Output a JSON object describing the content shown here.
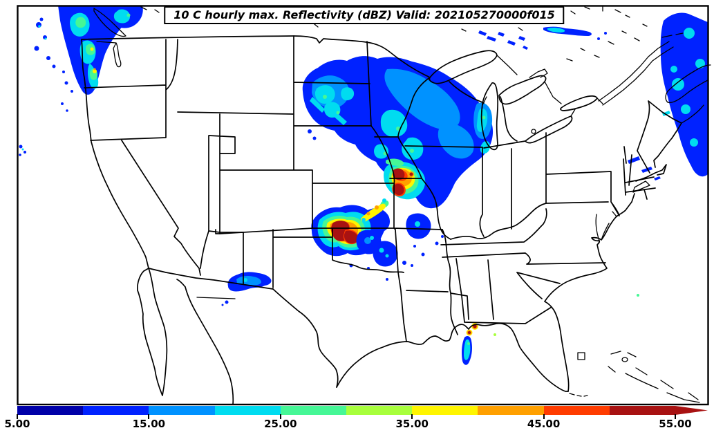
{
  "title": {
    "text": "10 C hourly max. Reflectivity (dBZ) Valid: 202105270000f015"
  },
  "colorbar": {
    "min": 5,
    "max": 55,
    "tick_labels": [
      "5.00",
      "15.00",
      "25.00",
      "35.00",
      "45.00",
      "55.00"
    ],
    "tick_values": [
      5,
      15,
      25,
      35,
      45,
      55
    ],
    "segments": [
      {
        "from": 5,
        "to": 10,
        "color": "#0000A8"
      },
      {
        "from": 10,
        "to": 15,
        "color": "#0022FF"
      },
      {
        "from": 15,
        "to": 20,
        "color": "#0092FF"
      },
      {
        "from": 20,
        "to": 25,
        "color": "#00DCF0"
      },
      {
        "from": 25,
        "to": 30,
        "color": "#46F796"
      },
      {
        "from": 30,
        "to": 35,
        "color": "#A8FF3C"
      },
      {
        "from": 35,
        "to": 40,
        "color": "#FFF500"
      },
      {
        "from": 40,
        "to": 45,
        "color": "#FFA000"
      },
      {
        "from": 45,
        "to": 50,
        "color": "#FF3C00"
      },
      {
        "from": 50,
        "to": 55,
        "color": "#A81212"
      }
    ],
    "overflow_arrow_color": "#A81212"
  }
}
